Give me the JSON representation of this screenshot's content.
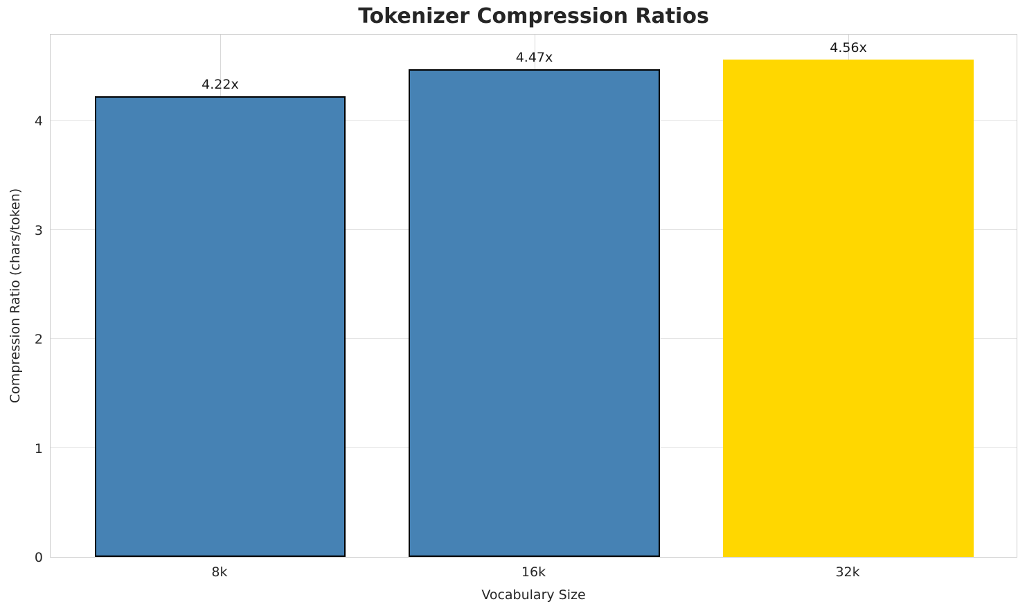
{
  "chart_data": {
    "type": "bar",
    "title": "Tokenizer Compression Ratios",
    "xlabel": "Vocabulary Size",
    "ylabel": "Compression Ratio (chars/token)",
    "categories": [
      "8k",
      "16k",
      "32k"
    ],
    "values": [
      4.22,
      4.47,
      4.56
    ],
    "bar_labels": [
      "4.22x",
      "4.47x",
      "4.56x"
    ],
    "bar_colors": [
      "#4682b4",
      "#4682b4",
      "#ffd700"
    ],
    "bar_edge_colors": [
      "#000000",
      "#000000",
      "#ffd700"
    ],
    "ylim": [
      0,
      4.8
    ],
    "yticks": [
      0,
      1,
      2,
      3,
      4
    ],
    "grid": true,
    "legend": "none",
    "style": {
      "highlight_color": "#ffd700",
      "base_color": "#4682b4",
      "grid_color": "#e2e2e2",
      "spine_color": "#cccccc",
      "text_color": "#262626"
    }
  }
}
